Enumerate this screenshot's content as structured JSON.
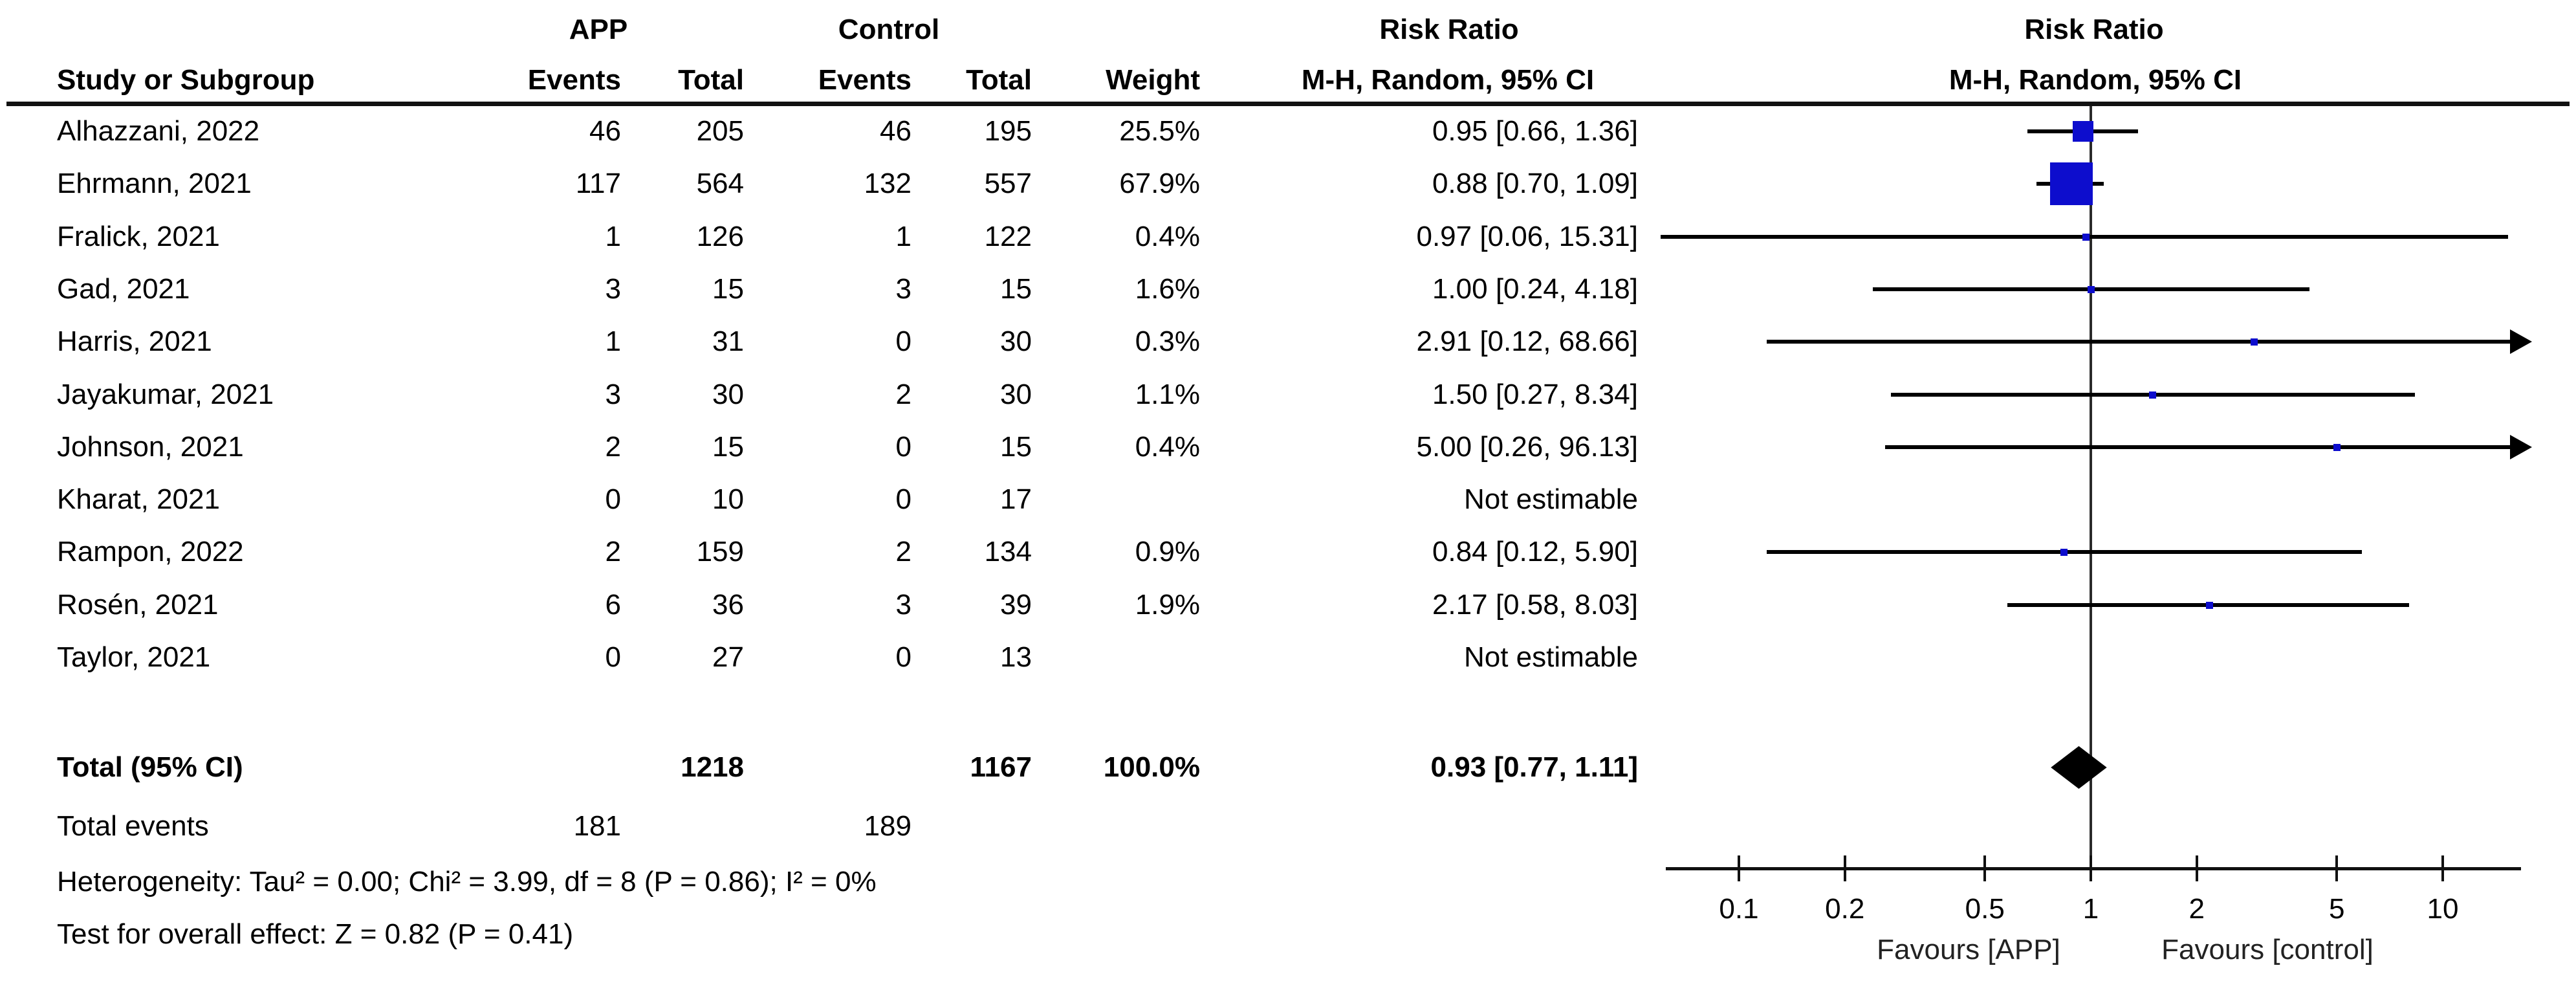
{
  "figure": {
    "headers": {
      "group1": "APP",
      "group2": "Control",
      "study": "Study or Subgroup",
      "events": "Events",
      "total": "Total",
      "weight": "Weight",
      "risk_ratio": "Risk Ratio",
      "method": "M-H, Random, 95% CI"
    },
    "chart_data": {
      "type": "forest_plot",
      "effect_measure": "Risk Ratio",
      "method_label": "M-H, Random, 95% CI",
      "x_axis": {
        "scale": "log",
        "ticks": [
          0.1,
          0.2,
          0.5,
          1,
          2,
          5,
          10
        ],
        "tick_labels": [
          "0.1",
          "0.2",
          "0.5",
          "1",
          "2",
          "5",
          "10"
        ],
        "range": [
          0.06,
          15
        ]
      },
      "favours_left": "Favours [APP]",
      "favours_right": "Favours [control]",
      "studies": [
        {
          "name": "Alhazzani, 2022",
          "app_events": "46",
          "app_total": "205",
          "control_events": "46",
          "control_total": "195",
          "weight": 25.5,
          "weight_label": "25.5%",
          "rr_ci": "0.95 [0.66, 1.36]",
          "rr": 0.95,
          "ci_low": 0.66,
          "ci_high": 1.36,
          "estimable": true
        },
        {
          "name": "Ehrmann, 2021",
          "app_events": "117",
          "app_total": "564",
          "control_events": "132",
          "control_total": "557",
          "weight": 67.9,
          "weight_label": "67.9%",
          "rr_ci": "0.88 [0.70, 1.09]",
          "rr": 0.88,
          "ci_low": 0.7,
          "ci_high": 1.09,
          "estimable": true
        },
        {
          "name": "Fralick, 2021",
          "app_events": "1",
          "app_total": "126",
          "control_events": "1",
          "control_total": "122",
          "weight": 0.4,
          "weight_label": "0.4%",
          "rr_ci": "0.97 [0.06, 15.31]",
          "rr": 0.97,
          "ci_low": 0.06,
          "ci_high": 15.31,
          "estimable": true
        },
        {
          "name": "Gad, 2021",
          "app_events": "3",
          "app_total": "15",
          "control_events": "3",
          "control_total": "15",
          "weight": 1.6,
          "weight_label": "1.6%",
          "rr_ci": "1.00 [0.24, 4.18]",
          "rr": 1.0,
          "ci_low": 0.24,
          "ci_high": 4.18,
          "estimable": true
        },
        {
          "name": "Harris, 2021",
          "app_events": "1",
          "app_total": "31",
          "control_events": "0",
          "control_total": "30",
          "weight": 0.3,
          "weight_label": "0.3%",
          "rr_ci": "2.91 [0.12, 68.66]",
          "rr": 2.91,
          "ci_low": 0.12,
          "ci_high": 68.66,
          "estimable": true
        },
        {
          "name": "Jayakumar, 2021",
          "app_events": "3",
          "app_total": "30",
          "control_events": "2",
          "control_total": "30",
          "weight": 1.1,
          "weight_label": "1.1%",
          "rr_ci": "1.50 [0.27, 8.34]",
          "rr": 1.5,
          "ci_low": 0.27,
          "ci_high": 8.34,
          "estimable": true
        },
        {
          "name": "Johnson, 2021",
          "app_events": "2",
          "app_total": "15",
          "control_events": "0",
          "control_total": "15",
          "weight": 0.4,
          "weight_label": "0.4%",
          "rr_ci": "5.00 [0.26, 96.13]",
          "rr": 5.0,
          "ci_low": 0.26,
          "ci_high": 96.13,
          "estimable": true
        },
        {
          "name": "Kharat, 2021",
          "app_events": "0",
          "app_total": "10",
          "control_events": "0",
          "control_total": "17",
          "weight": null,
          "weight_label": "",
          "rr_ci": "Not estimable",
          "rr": null,
          "ci_low": null,
          "ci_high": null,
          "estimable": false
        },
        {
          "name": "Rampon, 2022",
          "app_events": "2",
          "app_total": "159",
          "control_events": "2",
          "control_total": "134",
          "weight": 0.9,
          "weight_label": "0.9%",
          "rr_ci": "0.84 [0.12, 5.90]",
          "rr": 0.84,
          "ci_low": 0.12,
          "ci_high": 5.9,
          "estimable": true
        },
        {
          "name": "Rosén, 2021",
          "app_events": "6",
          "app_total": "36",
          "control_events": "3",
          "control_total": "39",
          "weight": 1.9,
          "weight_label": "1.9%",
          "rr_ci": "2.17 [0.58, 8.03]",
          "rr": 2.17,
          "ci_low": 0.58,
          "ci_high": 8.03,
          "estimable": true
        },
        {
          "name": "Taylor, 2021",
          "app_events": "0",
          "app_total": "27",
          "control_events": "0",
          "control_total": "13",
          "weight": null,
          "weight_label": "",
          "rr_ci": "Not estimable",
          "rr": null,
          "ci_low": null,
          "ci_high": null,
          "estimable": false
        }
      ],
      "total": {
        "label": "Total (95% CI)",
        "app_total": "1218",
        "control_total": "1167",
        "weight_label": "100.0%",
        "rr_ci": "0.93 [0.77, 1.11]",
        "rr": 0.93,
        "ci_low": 0.77,
        "ci_high": 1.11
      },
      "total_events": {
        "label": "Total events",
        "app": "181",
        "control": "189"
      },
      "heterogeneity": "Heterogeneity: Tau² = 0.00; Chi² = 3.99, df = 8 (P = 0.86); I² = 0%",
      "overall_effect": "Test for overall effect: Z = 0.82 (P = 0.41)",
      "colors": {
        "marker_blue": "#0D0DCD",
        "diamond_black": "#000000",
        "line_black": "#000000"
      }
    }
  }
}
